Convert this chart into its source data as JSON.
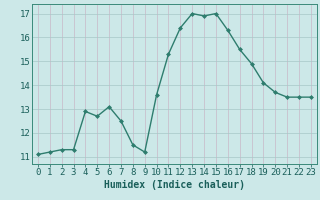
{
  "x": [
    0,
    1,
    2,
    3,
    4,
    5,
    6,
    7,
    8,
    9,
    10,
    11,
    12,
    13,
    14,
    15,
    16,
    17,
    18,
    19,
    20,
    21,
    22,
    23
  ],
  "y": [
    11.1,
    11.2,
    11.3,
    11.3,
    12.9,
    12.7,
    13.1,
    12.5,
    11.5,
    11.2,
    13.6,
    15.3,
    16.4,
    17.0,
    16.9,
    17.0,
    16.3,
    15.5,
    14.9,
    14.1,
    13.7,
    13.5,
    13.5,
    13.5
  ],
  "line_color": "#2e7d6e",
  "marker": "D",
  "marker_size": 2.0,
  "line_width": 1.0,
  "bg_color": "#cce8e8",
  "grid_color_v": "#c8b8c8",
  "grid_color_h": "#a8c8c8",
  "xlabel": "Humidex (Indice chaleur)",
  "xlabel_fontsize": 7,
  "xlabel_color": "#1a5f5a",
  "ylim": [
    10.7,
    17.4
  ],
  "xlim": [
    -0.5,
    23.5
  ],
  "yticks": [
    11,
    12,
    13,
    14,
    15,
    16,
    17
  ],
  "xticks": [
    0,
    1,
    2,
    3,
    4,
    5,
    6,
    7,
    8,
    9,
    10,
    11,
    12,
    13,
    14,
    15,
    16,
    17,
    18,
    19,
    20,
    21,
    22,
    23
  ],
  "tick_fontsize": 6.5,
  "tick_color": "#1a5f5a",
  "spine_color": "#3a8a7a"
}
